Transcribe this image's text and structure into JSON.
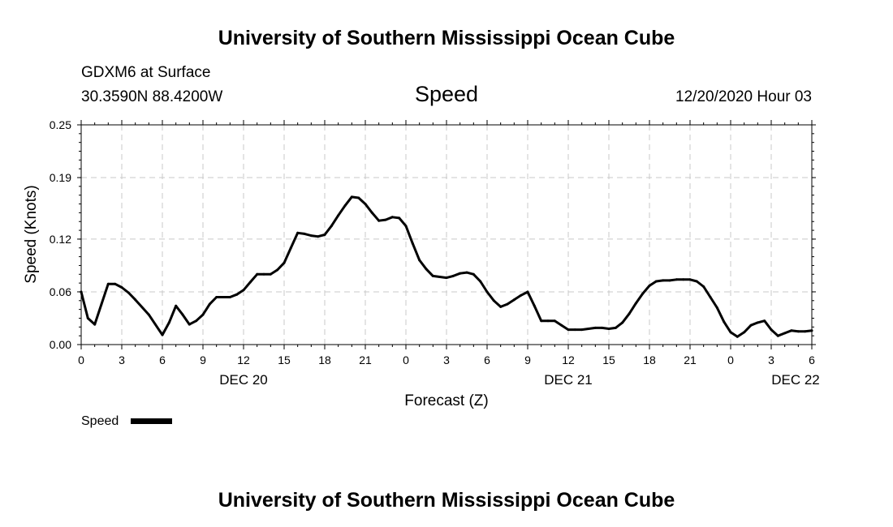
{
  "header": {
    "title": "University of Southern Mississippi Ocean Cube",
    "station": "GDXM6 at Surface",
    "coords": "30.3590N 88.4200W",
    "variable": "Speed",
    "timestamp": "12/20/2020 Hour 03"
  },
  "footer": {
    "title": "University of Southern Mississippi Ocean Cube"
  },
  "legend": {
    "label": "Speed",
    "color": "#000000"
  },
  "chart_data": {
    "type": "line",
    "title": "Speed",
    "xlabel": "Forecast (Z)",
    "ylabel": "Speed (Knots)",
    "ylim": [
      0,
      0.25
    ],
    "yticks": [
      0.0,
      0.06,
      0.12,
      0.19,
      0.25
    ],
    "ytick_labels": [
      "0.00",
      "0.06",
      "0.12",
      "0.19",
      "0.25"
    ],
    "xlim": [
      0,
      54
    ],
    "xticks": [
      0,
      3,
      6,
      9,
      12,
      15,
      18,
      21,
      24,
      27,
      30,
      33,
      36,
      39,
      42,
      45,
      48,
      51,
      54
    ],
    "xtick_labels": [
      "0",
      "3",
      "6",
      "9",
      "12",
      "15",
      "18",
      "21",
      "0",
      "3",
      "6",
      "9",
      "12",
      "15",
      "18",
      "21",
      "0",
      "3",
      "6"
    ],
    "date_labels": [
      {
        "label": "DEC 20",
        "x": 12
      },
      {
        "label": "DEC 21",
        "x": 36
      },
      {
        "label": "DEC 22",
        "x": 52.8
      }
    ],
    "grid": true,
    "series": [
      {
        "name": "Speed",
        "x": [
          0,
          0.5,
          1,
          1.5,
          2,
          2.5,
          3,
          3.5,
          4,
          5,
          6,
          6.5,
          7,
          7.5,
          8,
          8.5,
          9,
          9.5,
          10,
          10.5,
          11,
          11.5,
          12,
          12.5,
          13,
          13.5,
          14,
          14.5,
          15,
          15.5,
          16,
          16.5,
          17,
          17.5,
          18,
          18.5,
          19,
          19.5,
          20,
          20.5,
          21,
          21.5,
          22,
          22.5,
          23,
          23.5,
          24,
          24.5,
          25,
          25.5,
          26,
          26.5,
          27,
          27.5,
          28,
          28.5,
          29,
          29.5,
          30,
          30.5,
          31,
          31.5,
          32,
          32.5,
          33,
          33.5,
          34,
          34.5,
          35,
          35.5,
          36,
          36.5,
          37,
          37.5,
          38,
          38.5,
          39,
          39.5,
          40,
          40.5,
          41,
          41.5,
          42,
          42.5,
          43,
          43.5,
          44,
          44.5,
          45,
          45.5,
          46,
          46.5,
          47,
          47.5,
          48,
          48.5,
          49,
          49.5,
          50,
          50.5,
          51,
          51.5,
          52,
          52.5,
          53,
          53.5,
          54
        ],
        "values": [
          0.06,
          0.03,
          0.023,
          0.046,
          0.069,
          0.069,
          0.065,
          0.059,
          0.051,
          0.034,
          0.011,
          0.025,
          0.044,
          0.034,
          0.023,
          0.027,
          0.034,
          0.046,
          0.054,
          0.054,
          0.054,
          0.057,
          0.062,
          0.071,
          0.08,
          0.08,
          0.08,
          0.085,
          0.093,
          0.11,
          0.127,
          0.126,
          0.124,
          0.123,
          0.125,
          0.135,
          0.147,
          0.158,
          0.168,
          0.167,
          0.16,
          0.15,
          0.141,
          0.142,
          0.145,
          0.144,
          0.135,
          0.115,
          0.096,
          0.086,
          0.078,
          0.077,
          0.076,
          0.078,
          0.081,
          0.082,
          0.08,
          0.072,
          0.06,
          0.05,
          0.043,
          0.046,
          0.051,
          0.056,
          0.06,
          0.044,
          0.027,
          0.027,
          0.027,
          0.022,
          0.017,
          0.017,
          0.017,
          0.018,
          0.019,
          0.019,
          0.018,
          0.019,
          0.025,
          0.035,
          0.047,
          0.058,
          0.067,
          0.072,
          0.073,
          0.073,
          0.074,
          0.074,
          0.074,
          0.072,
          0.066,
          0.054,
          0.042,
          0.026,
          0.014,
          0.009,
          0.014,
          0.022,
          0.025,
          0.027,
          0.017,
          0.01,
          0.013,
          0.016,
          0.015,
          0.015,
          0.016
        ]
      }
    ]
  }
}
